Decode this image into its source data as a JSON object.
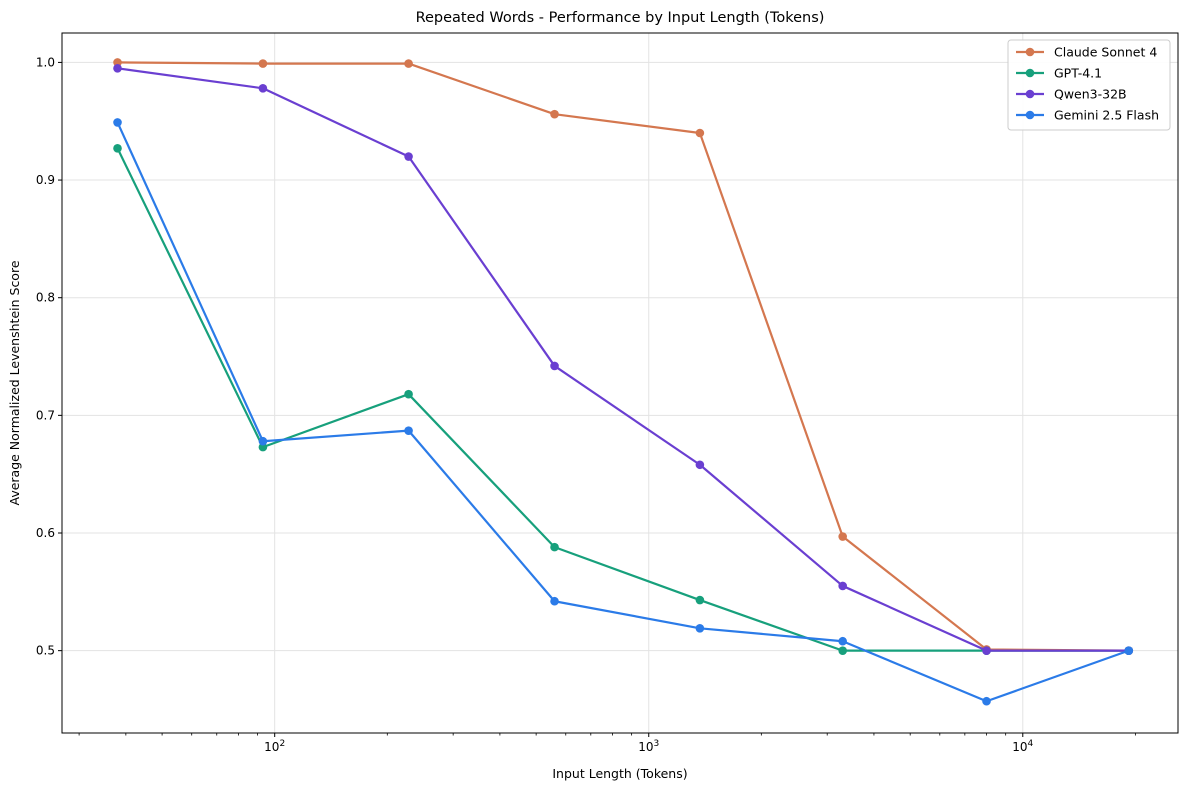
{
  "chart_data": {
    "type": "line",
    "title": "Repeated Words - Performance by Input Length (Tokens)",
    "xlabel": "Input Length (Tokens)",
    "ylabel": "Average Normalized Levenshtein Score",
    "xscale": "log",
    "xlim": [
      27,
      26000
    ],
    "ylim": [
      0.43,
      1.025
    ],
    "x": [
      38,
      93,
      228,
      560,
      1370,
      3300,
      8000,
      19200
    ],
    "y_ticks": [
      0.5,
      0.6,
      0.7,
      0.8,
      0.9,
      1.0
    ],
    "y_tick_labels": [
      "0.5",
      "0.6",
      "0.7",
      "0.8",
      "0.9",
      "1.0"
    ],
    "x_major_ticks": [
      100,
      1000,
      10000
    ],
    "x_tick_labels": [
      {
        "base": "10",
        "exp": "2"
      },
      {
        "base": "10",
        "exp": "3"
      },
      {
        "base": "10",
        "exp": "4"
      }
    ],
    "grid": true,
    "legend_position": "top-right",
    "series": [
      {
        "name": "Claude Sonnet 4",
        "color": "#d4774f",
        "values": [
          1.0,
          0.999,
          0.999,
          0.956,
          0.94,
          0.597,
          0.501,
          0.5
        ]
      },
      {
        "name": "GPT-4.1",
        "color": "#17a07c",
        "values": [
          0.927,
          0.673,
          0.718,
          0.588,
          0.543,
          0.5,
          0.5,
          0.5
        ]
      },
      {
        "name": "Qwen3-32B",
        "color": "#6a3fd1",
        "values": [
          0.995,
          0.978,
          0.92,
          0.742,
          0.658,
          0.555,
          0.5,
          0.5
        ]
      },
      {
        "name": "Gemini 2.5 Flash",
        "color": "#2b7be8",
        "values": [
          0.949,
          0.678,
          0.687,
          0.542,
          0.519,
          0.508,
          0.457,
          0.5
        ]
      }
    ]
  }
}
